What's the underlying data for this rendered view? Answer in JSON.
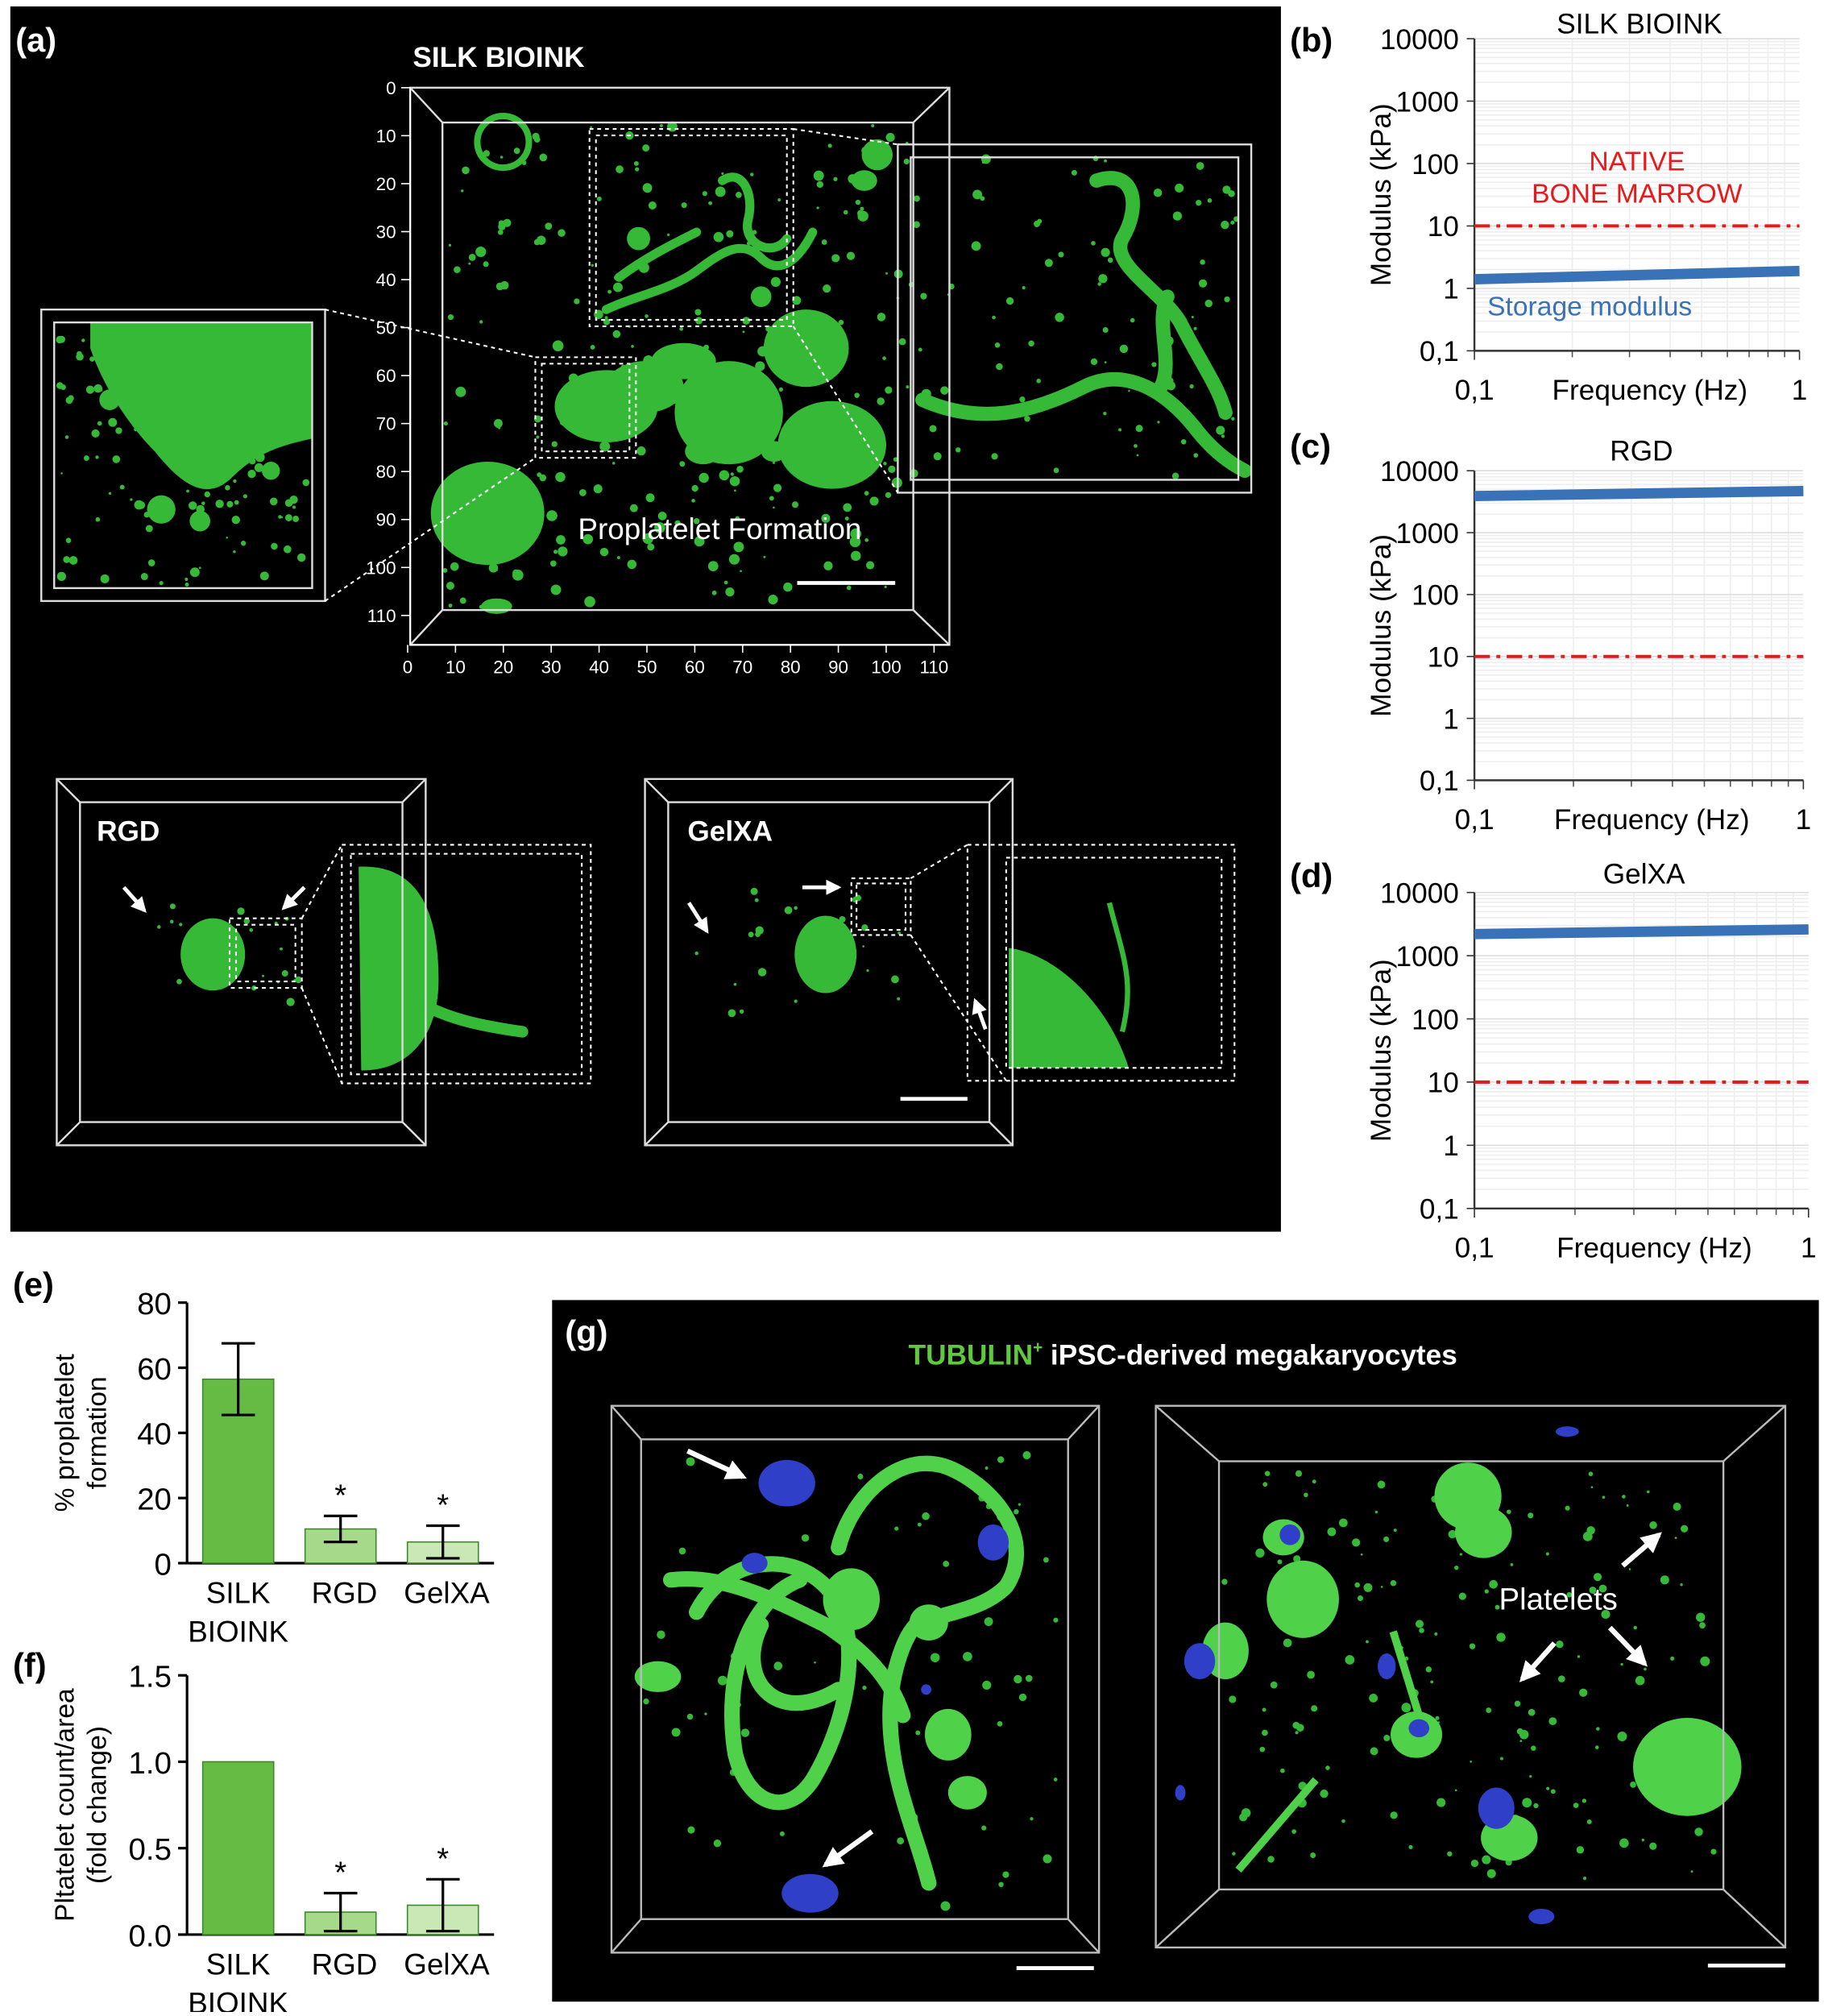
{
  "panel_labels": [
    "(a)",
    "(b)",
    "(c)",
    "(d)",
    "(e)",
    "(f)",
    "(g)"
  ],
  "panel_a": {
    "title": "SILK BIOINK",
    "annotation": "Proplatelet Formation",
    "y_ticks": [
      0,
      10,
      20,
      30,
      40,
      50,
      60,
      70,
      80,
      90,
      100,
      110
    ],
    "x_ticks": [
      0,
      10,
      20,
      30,
      40,
      50,
      60,
      70,
      80,
      90,
      100,
      110
    ],
    "insets": [
      "RGD",
      "GelXA"
    ]
  },
  "panel_g": {
    "title_marker": "TUBULIN",
    "title_superscript": "+",
    "title_rest": "iPSC-derived megakaryocytes",
    "annotation": "Platelets"
  },
  "chart_data": [
    {
      "type": "line",
      "title": "SILK BIOINK",
      "xlabel": "Frequency (Hz)",
      "ylabel": "Modulus (kPa)",
      "log_x": true,
      "log_y": true,
      "grid": true,
      "x": [
        0.1,
        1
      ],
      "xlim": [
        0.1,
        1
      ],
      "xticks": [
        {
          "value": 0.1,
          "label": "0,1"
        },
        1
      ],
      "ylim": [
        0.1,
        10000
      ],
      "yticks": [
        {
          "value": 0.1,
          "label": "0,1"
        },
        1,
        10,
        100,
        1000,
        10000
      ],
      "series": [
        {
          "name": "Storage modulus",
          "color": "#3a72b8",
          "values": [
            1.4,
            1.9
          ]
        }
      ],
      "reference_line": {
        "value": 10,
        "color": "#e8191c",
        "label": [
          "NATIVE",
          "BONE MARROW"
        ]
      }
    },
    {
      "type": "line",
      "title": "RGD",
      "xlabel": "Frequency (Hz)",
      "ylabel": "Modulus (kPa)",
      "log_x": true,
      "log_y": true,
      "grid": true,
      "x": [
        0.1,
        1
      ],
      "xlim": [
        0.1,
        1
      ],
      "xticks": [
        {
          "value": 0.1,
          "label": "0,1"
        },
        1
      ],
      "ylim": [
        0.1,
        10000
      ],
      "yticks": [
        {
          "value": 0.1,
          "label": "0,1"
        },
        1,
        10,
        100,
        1000,
        10000
      ],
      "series": [
        {
          "color": "#3a72b8",
          "values": [
            3900,
            4700
          ]
        }
      ],
      "reference_line": {
        "value": 10,
        "color": "#e8191c"
      }
    },
    {
      "type": "line",
      "title": "GelXA",
      "xlabel": "Frequency (Hz)",
      "ylabel": "Modulus (kPa)",
      "log_x": true,
      "log_y": true,
      "grid": true,
      "x": [
        0.1,
        1
      ],
      "xlim": [
        0.1,
        1
      ],
      "xticks": [
        {
          "value": 0.1,
          "label": "0,1"
        },
        1
      ],
      "ylim": [
        0.1,
        10000
      ],
      "yticks": [
        {
          "value": 0.1,
          "label": "0,1"
        },
        1,
        10,
        100,
        1000,
        10000
      ],
      "series": [
        {
          "color": "#3a72b8",
          "values": [
            2200,
            2600
          ]
        }
      ],
      "reference_line": {
        "value": 10,
        "color": "#e8191c"
      }
    },
    {
      "type": "bar",
      "categories": [
        [
          "SILK",
          "BIOINK"
        ],
        [
          "RGD"
        ],
        [
          "GelXA"
        ]
      ],
      "values": [
        56.5,
        10.5,
        6.5
      ],
      "errors": [
        11,
        4,
        5
      ],
      "colors": [
        "#66bb44",
        "#a6d98a",
        "#c9e8b6"
      ],
      "significance": [
        null,
        "*",
        "*"
      ],
      "ylabel": [
        "% proplatelet",
        "formation"
      ],
      "ylim": [
        0,
        80
      ],
      "yticks": [
        0,
        20,
        40,
        60,
        80
      ]
    },
    {
      "type": "bar",
      "categories": [
        [
          "SILK",
          "BIOINK"
        ],
        [
          "RGD"
        ],
        [
          "GelXA"
        ]
      ],
      "values": [
        1,
        0.13,
        0.17
      ],
      "errors": [
        null,
        0.11,
        0.15
      ],
      "colors": [
        "#66bb44",
        "#a6d98a",
        "#c9e8b6"
      ],
      "significance": [
        null,
        "*",
        "*"
      ],
      "ylabel": [
        "Pltatelet count/area",
        "(fold change)"
      ],
      "ylim": [
        0,
        1.5
      ],
      "yticks": [
        {
          "value": 0,
          "label": "0.0"
        },
        0.5,
        {
          "value": 1,
          "label": "1.0"
        },
        1.5
      ]
    }
  ]
}
